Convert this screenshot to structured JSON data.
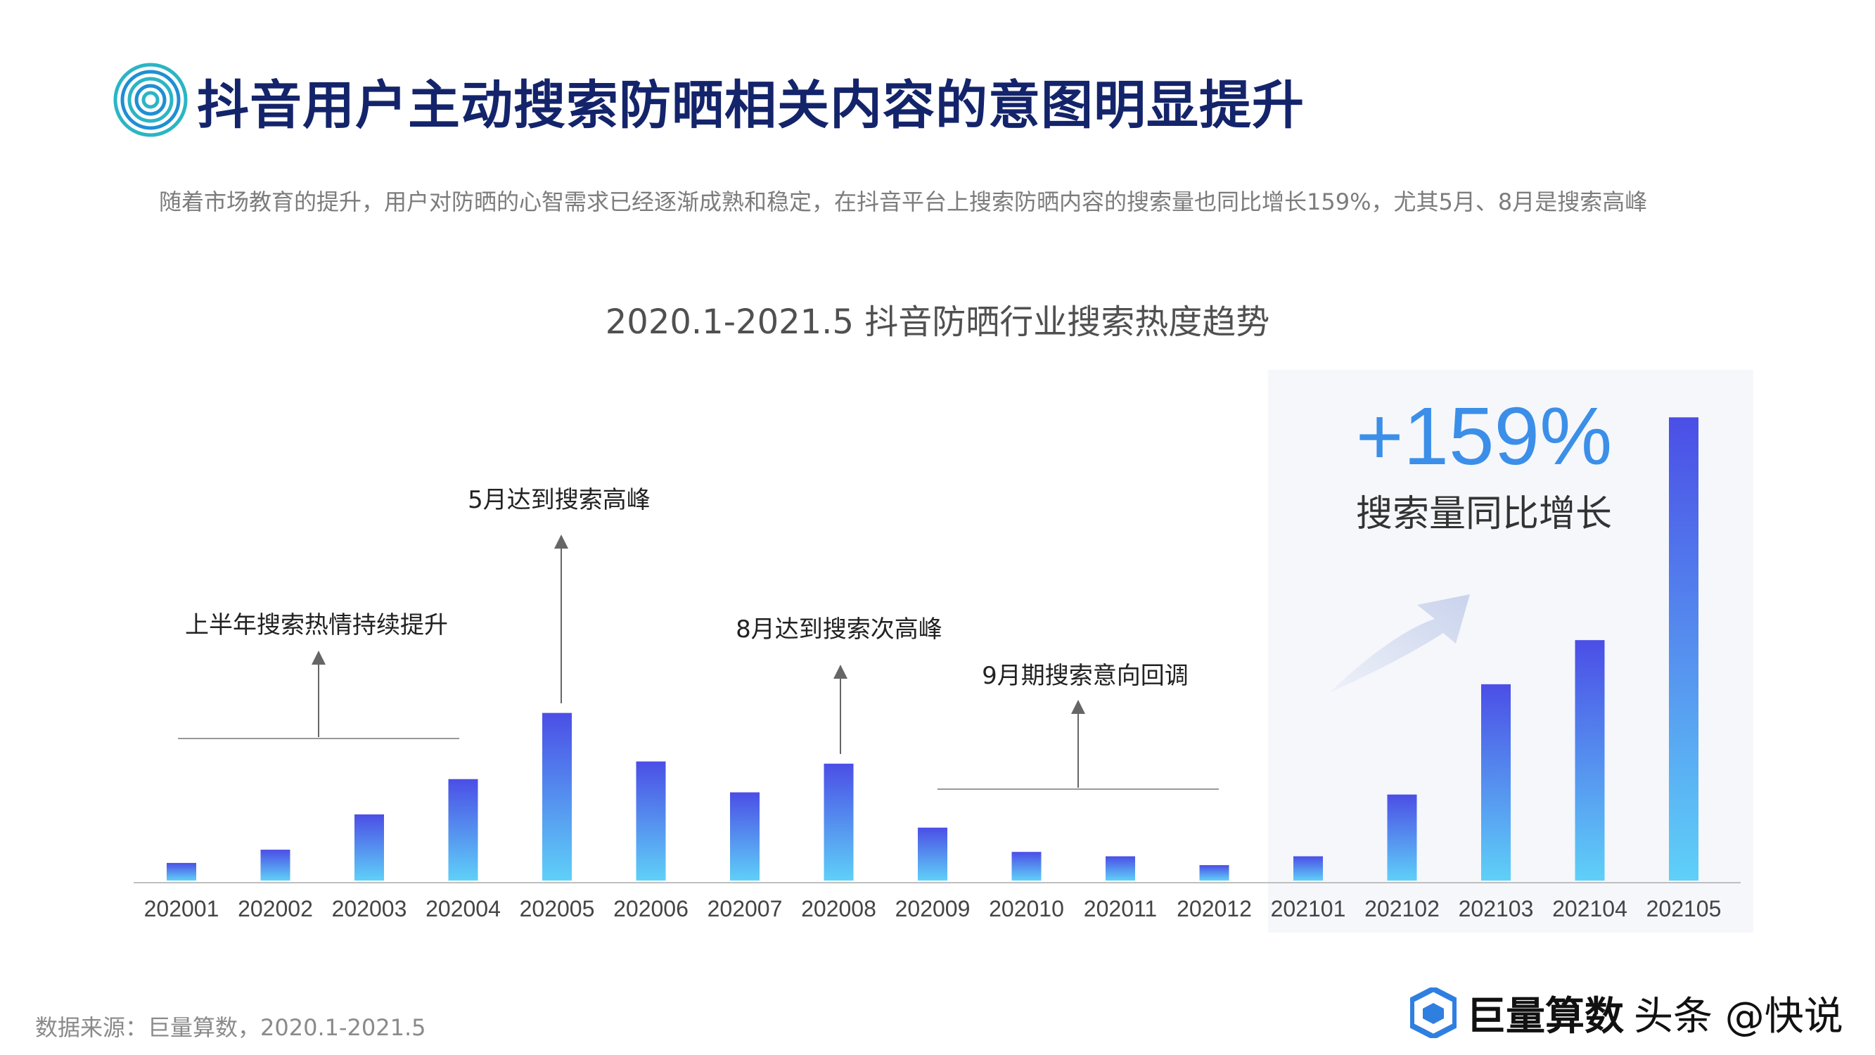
{
  "header": {
    "title": "抖音用户主动搜索防晒相关内容的意图明显提升",
    "subtitle": "随着市场教育的提升，用户对防晒的心智需求已经逐渐成熟和稳定，在抖音平台上搜索防晒内容的搜索量也同比增长159%，尤其5月、8月是搜索高峰"
  },
  "chart_data": {
    "type": "bar",
    "title": "2020.1-2021.5 抖音防晒行业搜索热度趋势",
    "categories": [
      "202001",
      "202002",
      "202003",
      "202004",
      "202005",
      "202006",
      "202007",
      "202008",
      "202009",
      "202010",
      "202011",
      "202012",
      "202101",
      "202102",
      "202103",
      "202104",
      "202105"
    ],
    "values": [
      4,
      7,
      15,
      23,
      38,
      27,
      20,
      26.5,
      12,
      6.5,
      5.5,
      3.5,
      5.5,
      19.5,
      44.5,
      54.5,
      105
    ],
    "ylim": [
      0,
      110
    ],
    "grid": false,
    "colors": {
      "bar_top": "#4b4ee6",
      "bar_bottom": "#5fd0f8"
    },
    "annotations": [
      {
        "text": "上半年搜索热情持续提升"
      },
      {
        "text": "5月达到搜索高峰"
      },
      {
        "text": "8月达到搜索次高峰"
      },
      {
        "text": "9月期搜索意向回调"
      }
    ],
    "highlight": {
      "value": "+159%",
      "label": "搜索量同比增长"
    }
  },
  "footer": {
    "source": "数据来源：巨量算数，2020.1-2021.5",
    "brand": "巨量算数",
    "watermark": "头条 @快说"
  }
}
